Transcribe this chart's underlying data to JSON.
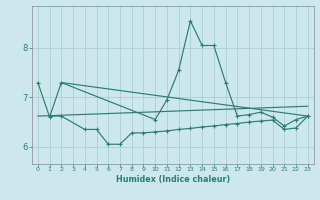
{
  "xlabel": "Humidex (Indice chaleur)",
  "bg_color": "#cce8ec",
  "grid_color": "#aacdd4",
  "line_color": "#2d7d6e",
  "xmin": -0.5,
  "xmax": 23.5,
  "ymin": 5.65,
  "ymax": 8.85,
  "main_x": [
    0,
    1,
    2,
    10,
    11,
    12,
    13,
    14,
    15,
    16,
    17,
    18,
    19,
    20,
    21,
    22,
    23
  ],
  "main_y": [
    7.3,
    6.6,
    7.3,
    6.55,
    6.95,
    7.55,
    8.55,
    8.05,
    8.05,
    7.3,
    6.62,
    6.65,
    6.7,
    6.6,
    6.42,
    6.55,
    6.62
  ],
  "bot_x": [
    1,
    2,
    4,
    5,
    6,
    7,
    8,
    9,
    10,
    11,
    12,
    13,
    14,
    15,
    16,
    17,
    18,
    19,
    20,
    21,
    22,
    23
  ],
  "bot_y": [
    6.62,
    6.62,
    6.35,
    6.35,
    6.05,
    6.05,
    6.28,
    6.28,
    6.3,
    6.32,
    6.35,
    6.37,
    6.4,
    6.42,
    6.45,
    6.47,
    6.5,
    6.52,
    6.54,
    6.35,
    6.38,
    6.62
  ],
  "trend1_x": [
    2,
    23
  ],
  "trend1_y": [
    7.3,
    6.62
  ],
  "trend2_x": [
    0,
    23
  ],
  "trend2_y": [
    6.62,
    6.82
  ],
  "yticks": [
    6,
    7,
    8
  ]
}
